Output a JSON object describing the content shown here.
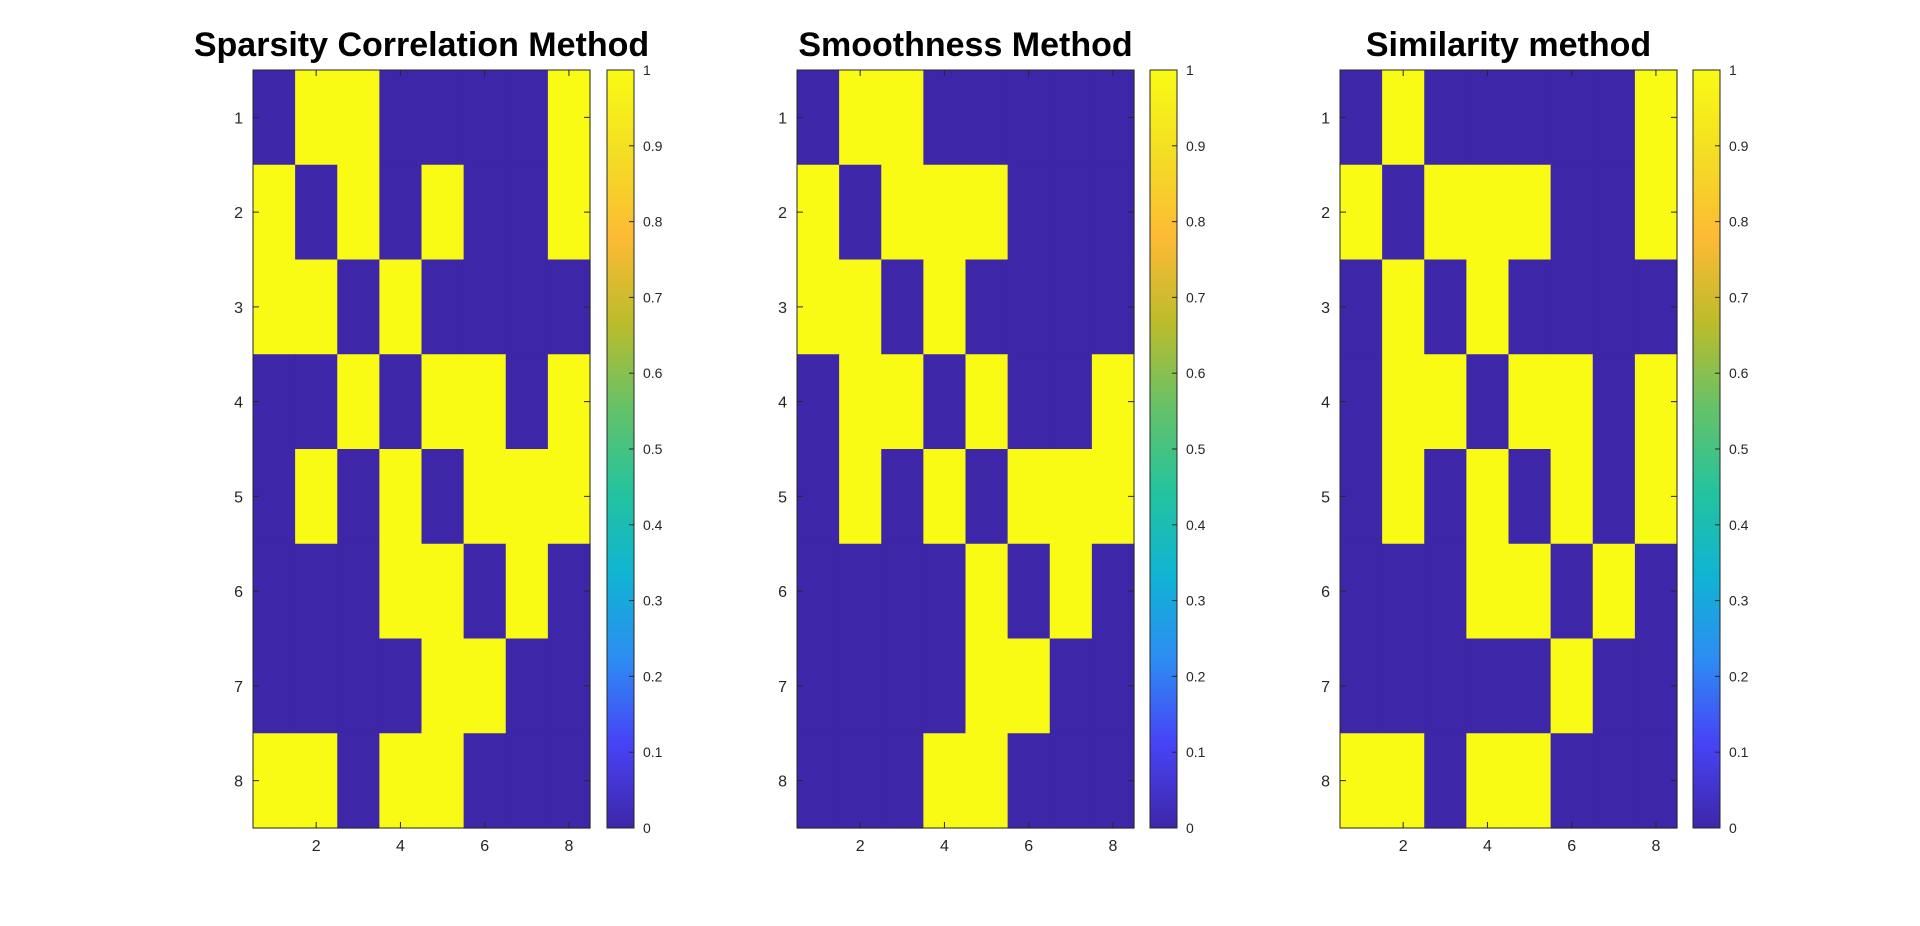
{
  "chart_data": [
    {
      "type": "heatmap",
      "title": "Sparsity Correlation Method",
      "xticks": [
        2,
        4,
        6,
        8
      ],
      "yticks": [
        1,
        2,
        3,
        4,
        5,
        6,
        7,
        8
      ],
      "xlim": [
        0.5,
        8.5
      ],
      "ylim": [
        0.5,
        8.5
      ],
      "colorbar": {
        "min": 0,
        "max": 1,
        "ticks": [
          "0",
          "0.1",
          "0.2",
          "0.3",
          "0.4",
          "0.5",
          "0.6",
          "0.7",
          "0.8",
          "0.9",
          "1"
        ]
      },
      "matrix": [
        [
          0,
          1,
          1,
          0,
          0,
          0,
          0,
          1
        ],
        [
          1,
          0,
          1,
          0,
          1,
          0,
          0,
          1
        ],
        [
          1,
          1,
          0,
          1,
          0,
          0,
          0,
          0
        ],
        [
          0,
          0,
          1,
          0,
          1,
          1,
          0,
          1
        ],
        [
          0,
          1,
          0,
          1,
          0,
          1,
          1,
          1
        ],
        [
          0,
          0,
          0,
          1,
          1,
          0,
          1,
          0
        ],
        [
          0,
          0,
          0,
          0,
          1,
          1,
          0,
          0
        ],
        [
          1,
          1,
          0,
          1,
          1,
          0,
          0,
          0
        ]
      ]
    },
    {
      "type": "heatmap",
      "title": "Smoothness Method",
      "xticks": [
        2,
        4,
        6,
        8
      ],
      "yticks": [
        1,
        2,
        3,
        4,
        5,
        6,
        7,
        8
      ],
      "xlim": [
        0.5,
        8.5
      ],
      "ylim": [
        0.5,
        8.5
      ],
      "colorbar": {
        "min": 0,
        "max": 1,
        "ticks": [
          "0",
          "0.1",
          "0.2",
          "0.3",
          "0.4",
          "0.5",
          "0.6",
          "0.7",
          "0.8",
          "0.9",
          "1"
        ]
      },
      "matrix": [
        [
          0,
          1,
          1,
          0,
          0,
          0,
          0,
          0
        ],
        [
          1,
          0,
          1,
          1,
          1,
          0,
          0,
          0
        ],
        [
          1,
          1,
          0,
          1,
          0,
          0,
          0,
          0
        ],
        [
          0,
          1,
          1,
          0,
          1,
          0,
          0,
          1
        ],
        [
          0,
          1,
          0,
          1,
          0,
          1,
          1,
          1
        ],
        [
          0,
          0,
          0,
          0,
          1,
          0,
          1,
          0
        ],
        [
          0,
          0,
          0,
          0,
          1,
          1,
          0,
          0
        ],
        [
          0,
          0,
          0,
          1,
          1,
          0,
          0,
          0
        ]
      ]
    },
    {
      "type": "heatmap",
      "title": "Similarity method",
      "xticks": [
        2,
        4,
        6,
        8
      ],
      "yticks": [
        1,
        2,
        3,
        4,
        5,
        6,
        7,
        8
      ],
      "xlim": [
        0.5,
        8.5
      ],
      "ylim": [
        0.5,
        8.5
      ],
      "colorbar": {
        "min": 0,
        "max": 1,
        "ticks": [
          "0",
          "0.1",
          "0.2",
          "0.3",
          "0.4",
          "0.5",
          "0.6",
          "0.7",
          "0.8",
          "0.9",
          "1"
        ]
      },
      "matrix": [
        [
          0,
          1,
          0,
          0,
          0,
          0,
          0,
          1
        ],
        [
          1,
          0,
          1,
          1,
          1,
          0,
          0,
          1
        ],
        [
          0,
          1,
          0,
          1,
          0,
          0,
          0,
          0
        ],
        [
          0,
          1,
          1,
          0,
          1,
          1,
          0,
          1
        ],
        [
          0,
          1,
          0,
          1,
          0,
          1,
          0,
          1
        ],
        [
          0,
          0,
          0,
          1,
          1,
          0,
          1,
          0
        ],
        [
          0,
          0,
          0,
          0,
          0,
          1,
          0,
          0
        ],
        [
          1,
          1,
          0,
          1,
          1,
          0,
          0,
          0
        ]
      ]
    }
  ],
  "colors": {
    "zero": "#3d26a8",
    "one": "#f9fb15",
    "axis": "#262626",
    "parula": [
      "#3e26a8",
      "#4743f6",
      "#2d8cf3",
      "#10b4d3",
      "#24c39d",
      "#66c267",
      "#bcbc2b",
      "#fdba35",
      "#f4dd23",
      "#f9fb15"
    ]
  }
}
